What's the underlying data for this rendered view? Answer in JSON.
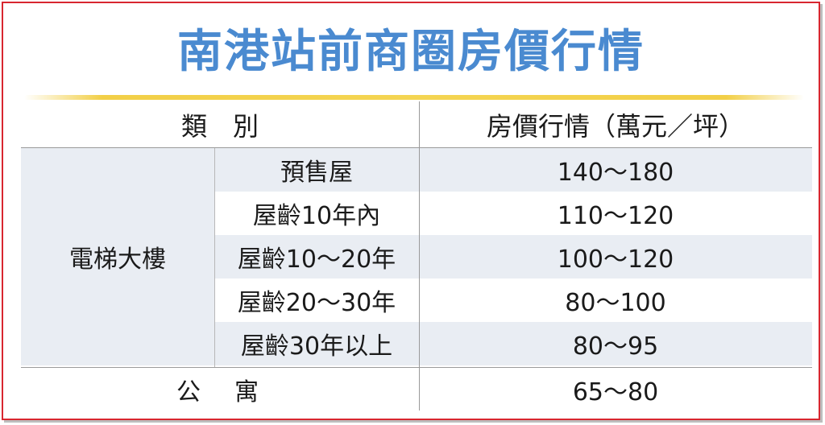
{
  "title": "南港站前商圈房價行情",
  "table": {
    "headers": {
      "category": "類　別",
      "price": "房價行情（萬元／坪）"
    },
    "groups": [
      {
        "name": "電梯大樓",
        "rows": [
          {
            "type": "預售屋",
            "price": "140～180"
          },
          {
            "type": "屋齡10年內",
            "price": "110～120"
          },
          {
            "type": "屋齡10～20年",
            "price": "100～120"
          },
          {
            "type": "屋齡20～30年",
            "price": "80～100"
          },
          {
            "type": "屋齡30年以上",
            "price": "80～95"
          }
        ]
      }
    ],
    "footer_row": {
      "type": "公　寓",
      "price": "65～80"
    }
  },
  "colors": {
    "title": "#4a8ad0",
    "accent_line": "#f2cf47",
    "border": "#d8262f",
    "band": "#e9edf3"
  }
}
